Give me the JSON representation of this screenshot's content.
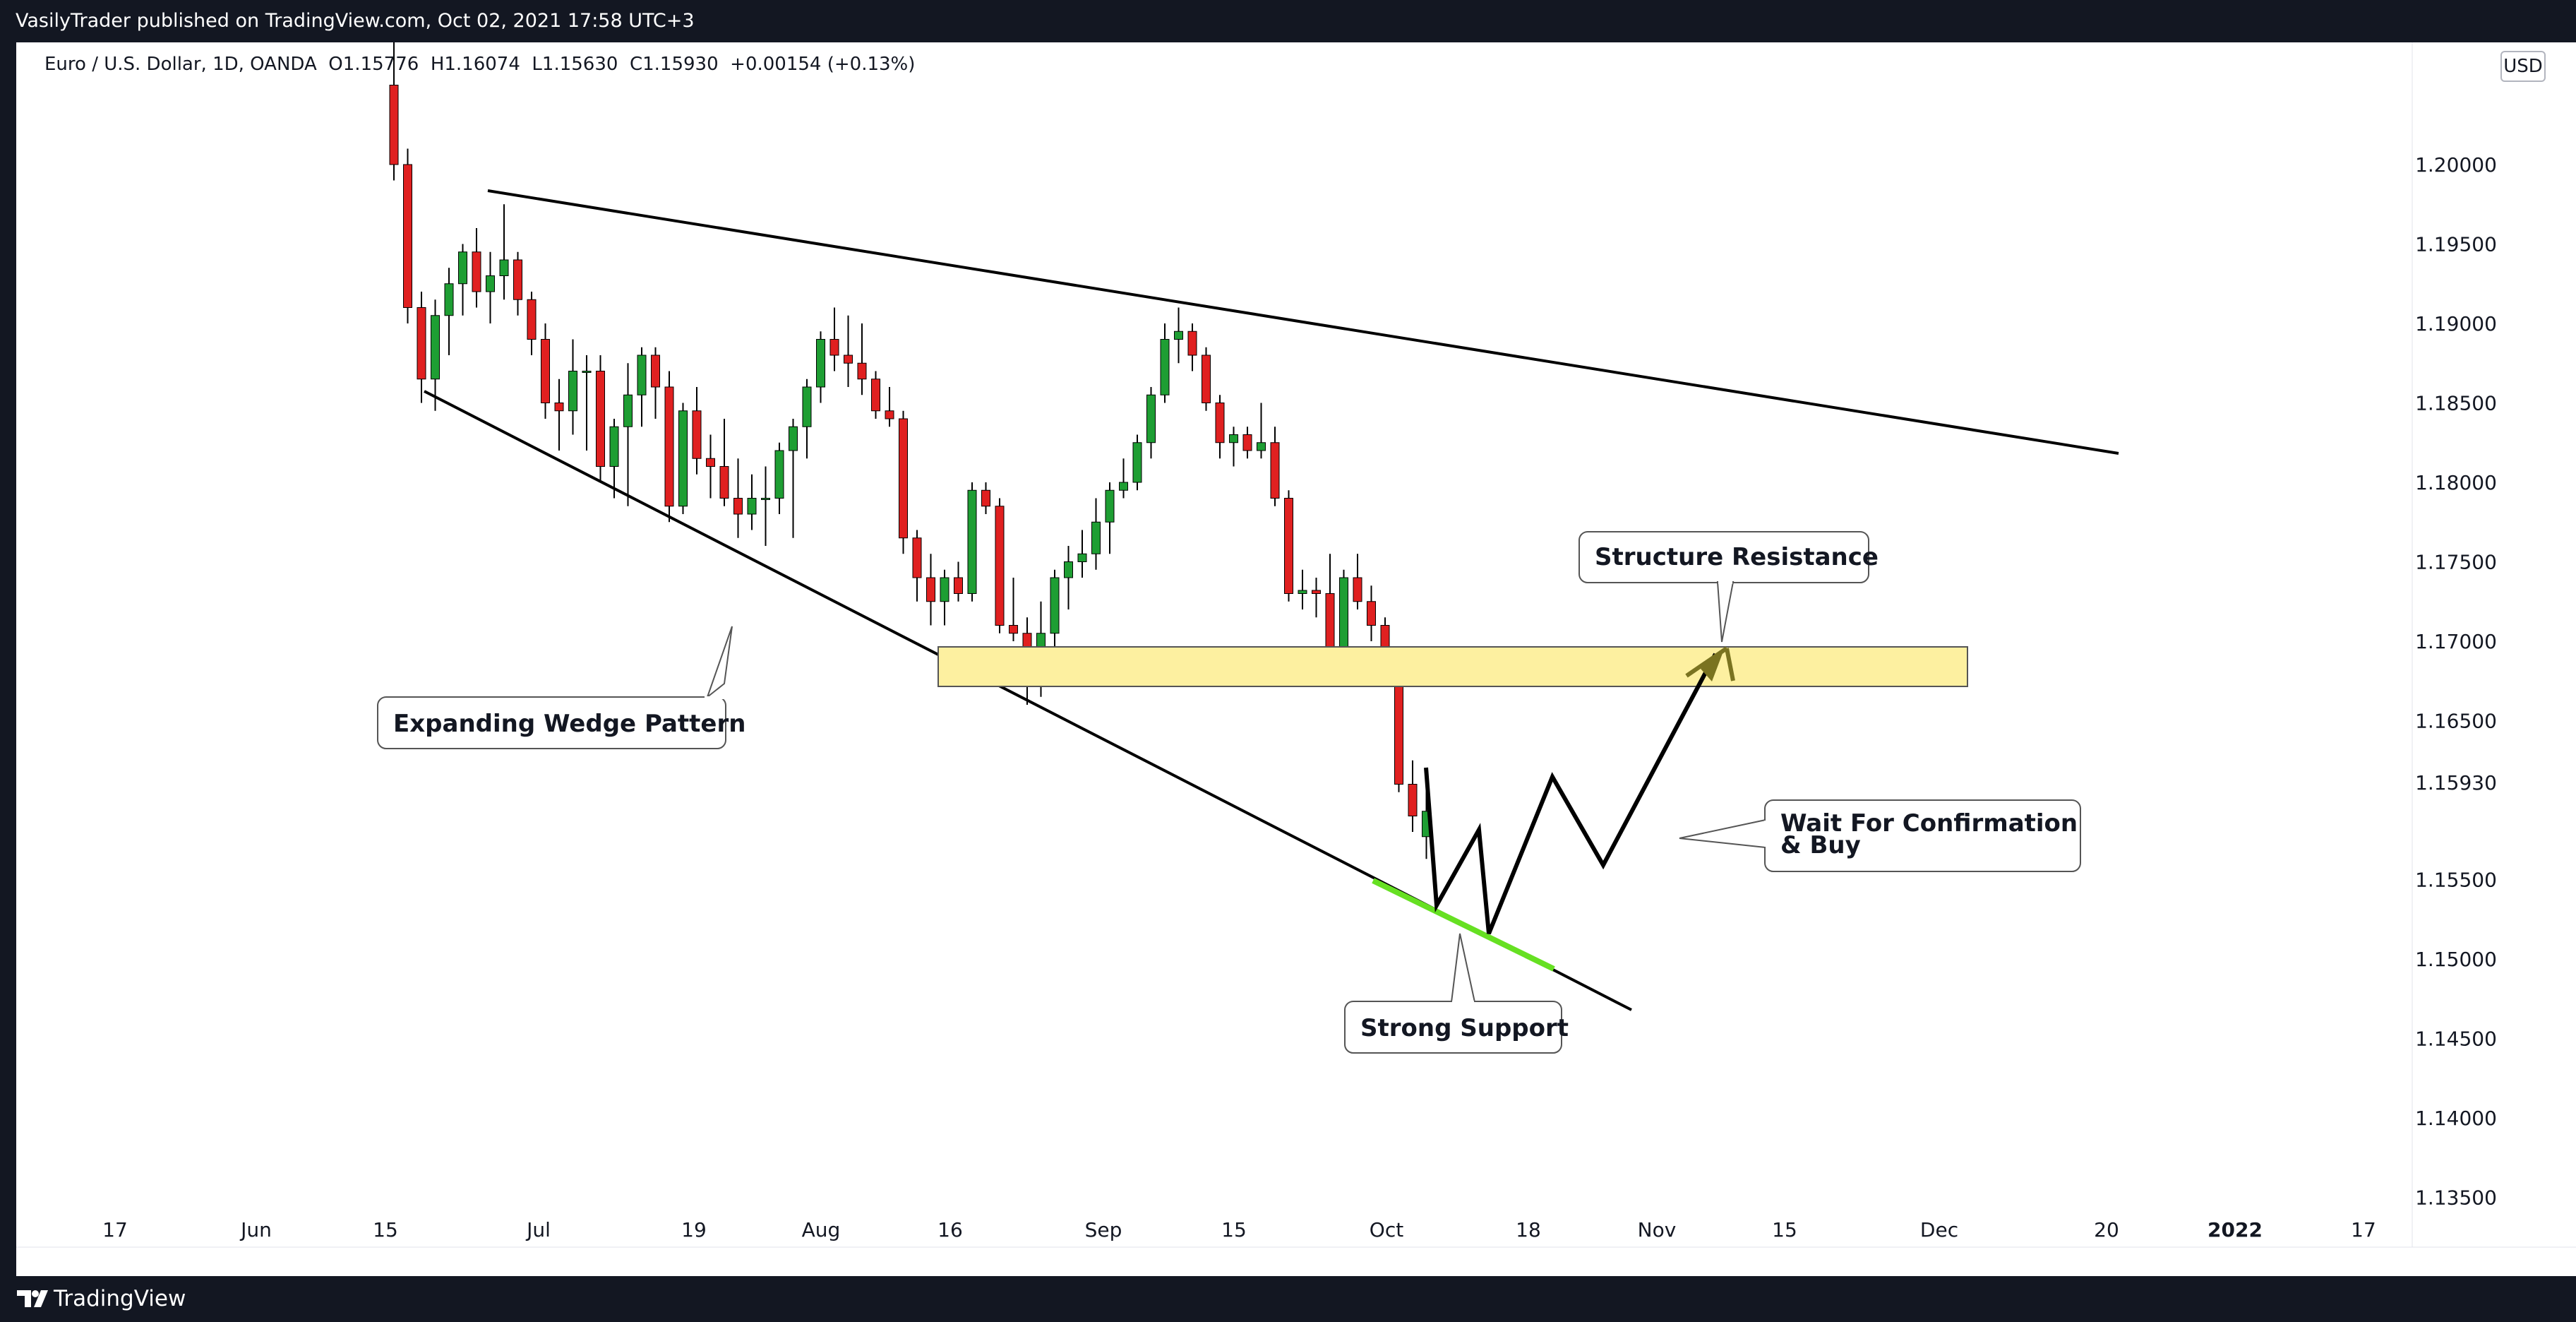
{
  "header": {
    "published": "VasilyTrader published on TradingView.com, Oct 02, 2021 17:58 UTC+3"
  },
  "legend": {
    "symbol": "Euro / U.S. Dollar, 1D, OANDA",
    "open": "O1.15776",
    "high": "H1.16074",
    "low": "L1.15630",
    "close": "C1.15930",
    "change": "+0.00154 (+0.13%)"
  },
  "currency": "USD",
  "chart_data": {
    "type": "candlestick",
    "y_ticks": [
      "1.20000",
      "1.19500",
      "1.19000",
      "1.18500",
      "1.18000",
      "1.17500",
      "1.17000",
      "1.16500",
      "1.15500",
      "1.15000",
      "1.14500",
      "1.14000",
      "1.13500"
    ],
    "last_price": "1.15930",
    "x_ticks": [
      "17",
      "Jun",
      "15",
      "Jul",
      "19",
      "Aug",
      "16",
      "Sep",
      "15",
      "Oct",
      "18",
      "Nov",
      "15",
      "Dec",
      "20",
      "2022",
      "17"
    ],
    "candles": [
      [
        1.205,
        1.208,
        1.199,
        1.2
      ],
      [
        1.2,
        1.201,
        1.19,
        1.191
      ],
      [
        1.191,
        1.192,
        1.185,
        1.1865
      ],
      [
        1.1865,
        1.1915,
        1.1845,
        1.1905
      ],
      [
        1.1905,
        1.1935,
        1.188,
        1.1925
      ],
      [
        1.1925,
        1.195,
        1.1905,
        1.1945
      ],
      [
        1.1945,
        1.196,
        1.191,
        1.192
      ],
      [
        1.192,
        1.1945,
        1.19,
        1.193
      ],
      [
        1.193,
        1.1975,
        1.1915,
        1.194
      ],
      [
        1.194,
        1.1945,
        1.1905,
        1.1915
      ],
      [
        1.1915,
        1.192,
        1.188,
        1.189
      ],
      [
        1.189,
        1.19,
        1.184,
        1.185
      ],
      [
        1.185,
        1.1865,
        1.182,
        1.1845
      ],
      [
        1.1845,
        1.189,
        1.183,
        1.187
      ],
      [
        1.187,
        1.188,
        1.182,
        1.187
      ],
      [
        1.187,
        1.188,
        1.18,
        1.181
      ],
      [
        1.181,
        1.184,
        1.179,
        1.1835
      ],
      [
        1.1835,
        1.1875,
        1.1785,
        1.1855
      ],
      [
        1.1855,
        1.1885,
        1.1835,
        1.188
      ],
      [
        1.188,
        1.1885,
        1.184,
        1.186
      ],
      [
        1.186,
        1.187,
        1.1775,
        1.1785
      ],
      [
        1.1785,
        1.185,
        1.178,
        1.1845
      ],
      [
        1.1845,
        1.186,
        1.1805,
        1.1815
      ],
      [
        1.1815,
        1.183,
        1.179,
        1.181
      ],
      [
        1.181,
        1.184,
        1.1785,
        1.179
      ],
      [
        1.179,
        1.1815,
        1.1765,
        1.178
      ],
      [
        1.178,
        1.1805,
        1.177,
        1.179
      ],
      [
        1.179,
        1.181,
        1.176,
        1.179
      ],
      [
        1.179,
        1.1825,
        1.178,
        1.182
      ],
      [
        1.182,
        1.184,
        1.1765,
        1.1835
      ],
      [
        1.1835,
        1.1865,
        1.1815,
        1.186
      ],
      [
        1.186,
        1.1895,
        1.185,
        1.189
      ],
      [
        1.189,
        1.191,
        1.187,
        1.188
      ],
      [
        1.188,
        1.1905,
        1.186,
        1.1875
      ],
      [
        1.1875,
        1.19,
        1.1855,
        1.1865
      ],
      [
        1.1865,
        1.187,
        1.184,
        1.1845
      ],
      [
        1.1845,
        1.186,
        1.1835,
        1.184
      ],
      [
        1.184,
        1.1845,
        1.1755,
        1.1765
      ],
      [
        1.1765,
        1.177,
        1.1725,
        1.174
      ],
      [
        1.174,
        1.1755,
        1.171,
        1.1725
      ],
      [
        1.1725,
        1.1745,
        1.171,
        1.174
      ],
      [
        1.174,
        1.175,
        1.1725,
        1.173
      ],
      [
        1.173,
        1.18,
        1.1725,
        1.1795
      ],
      [
        1.1795,
        1.18,
        1.178,
        1.1785
      ],
      [
        1.1785,
        1.179,
        1.1705,
        1.171
      ],
      [
        1.171,
        1.174,
        1.17,
        1.1705
      ],
      [
        1.1705,
        1.1715,
        1.166,
        1.1675
      ],
      [
        1.1675,
        1.1725,
        1.1665,
        1.1705
      ],
      [
        1.1705,
        1.1745,
        1.1695,
        1.174
      ],
      [
        1.174,
        1.176,
        1.172,
        1.175
      ],
      [
        1.175,
        1.177,
        1.174,
        1.1755
      ],
      [
        1.1755,
        1.179,
        1.1745,
        1.1775
      ],
      [
        1.1775,
        1.18,
        1.1755,
        1.1795
      ],
      [
        1.1795,
        1.1815,
        1.179,
        1.18
      ],
      [
        1.18,
        1.183,
        1.1795,
        1.1825
      ],
      [
        1.1825,
        1.186,
        1.1815,
        1.1855
      ],
      [
        1.1855,
        1.19,
        1.185,
        1.189
      ],
      [
        1.189,
        1.191,
        1.1875,
        1.1895
      ],
      [
        1.1895,
        1.19,
        1.187,
        1.188
      ],
      [
        1.188,
        1.1885,
        1.1845,
        1.185
      ],
      [
        1.185,
        1.1855,
        1.1815,
        1.1825
      ],
      [
        1.1825,
        1.1835,
        1.181,
        1.183
      ],
      [
        1.183,
        1.1835,
        1.1815,
        1.182
      ],
      [
        1.182,
        1.185,
        1.1815,
        1.1825
      ],
      [
        1.1825,
        1.1835,
        1.1785,
        1.179
      ],
      [
        1.179,
        1.1795,
        1.1725,
        1.173
      ],
      [
        1.173,
        1.1745,
        1.172,
        1.1732
      ],
      [
        1.1732,
        1.174,
        1.1715,
        1.173
      ],
      [
        1.173,
        1.1755,
        1.1685,
        1.169
      ],
      [
        1.169,
        1.1745,
        1.1685,
        1.174
      ],
      [
        1.174,
        1.1755,
        1.172,
        1.1725
      ],
      [
        1.1725,
        1.1735,
        1.17,
        1.171
      ],
      [
        1.171,
        1.1715,
        1.168,
        1.169
      ],
      [
        1.169,
        1.1695,
        1.1605,
        1.161
      ],
      [
        1.161,
        1.1625,
        1.158,
        1.159
      ],
      [
        1.1577,
        1.1607,
        1.1563,
        1.1593
      ]
    ],
    "annotations": [
      "Expanding Wedge Pattern",
      "Structure Resistance",
      "Wait For Confirmation & Buy",
      "Strong Support"
    ]
  },
  "callouts": {
    "wedge": "Expanding Wedge Pattern",
    "resistance": "Structure Resistance",
    "confirm_1": "Wait For Confirmation",
    "confirm_2": "& Buy",
    "support": "Strong Support"
  },
  "footer": {
    "brand": "TradingView"
  },
  "colors": {
    "up": "#1e9e33",
    "down": "#e02020",
    "zone": "#fdf0a0",
    "support_line": "#66e022",
    "arrow": "#7a7320"
  }
}
